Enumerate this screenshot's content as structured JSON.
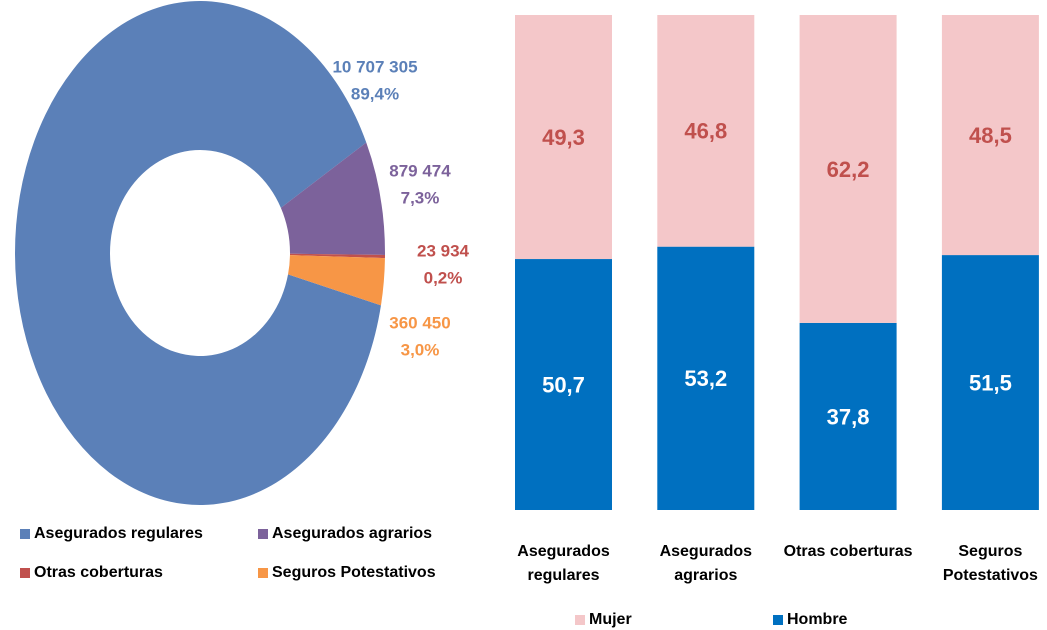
{
  "chart_data": [
    {
      "type": "donut",
      "categories": [
        "Asegurados regulares",
        "Asegurados agrarios",
        "Otras coberturas",
        "Seguros Potestativos"
      ],
      "values": [
        10707305,
        879474,
        23934,
        360450
      ],
      "value_labels": [
        "10 707 305",
        "879 474",
        "23 934",
        "360 450"
      ],
      "percent_labels": [
        "89,4%",
        "7,3%",
        "0,2%",
        "3,0%"
      ],
      "colors": [
        "#5b80b8",
        "#7c629b",
        "#c0504d",
        "#f79646"
      ]
    },
    {
      "type": "stacked_bar",
      "categories": [
        "Asegurados regulares",
        "Asegurados agrarios",
        "Otras coberturas",
        "Seguros Potestativos"
      ],
      "series": [
        {
          "name": "Mujer",
          "color": "#f4c7c9",
          "label_color": "#c0504d",
          "values": [
            49.3,
            46.8,
            62.2,
            48.5
          ],
          "value_labels": [
            "49,3",
            "46,8",
            "62,2",
            "48,5"
          ]
        },
        {
          "name": "Hombre",
          "color": "#0070c0",
          "label_color": "#ffffff",
          "values": [
            50.7,
            53.2,
            37.8,
            51.5
          ],
          "value_labels": [
            "50,7",
            "53,2",
            "37,8",
            "51,5"
          ]
        }
      ],
      "ylim": [
        0,
        100
      ]
    }
  ]
}
